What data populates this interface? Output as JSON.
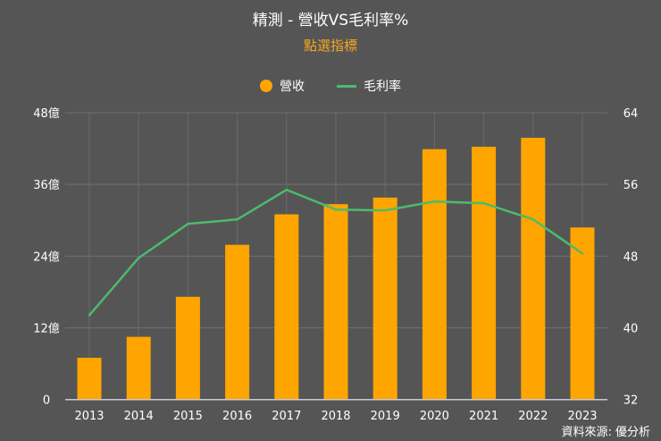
{
  "chart_data": {
    "type": "bar+line",
    "title": "精測 - 營收VS毛利率%",
    "subtitle": "點選指標",
    "categories": [
      "2013",
      "2014",
      "2015",
      "2016",
      "2017",
      "2018",
      "2019",
      "2020",
      "2021",
      "2022",
      "2023"
    ],
    "series": [
      {
        "name": "營收",
        "type": "bar",
        "axis": "left",
        "color": "#ffa500",
        "values": [
          7.0,
          10.5,
          17.2,
          25.9,
          31.0,
          32.7,
          33.8,
          41.9,
          42.3,
          43.8,
          28.8
        ]
      },
      {
        "name": "毛利率",
        "type": "line",
        "axis": "right",
        "color": "#4cbb6c",
        "values": [
          41.4,
          47.8,
          51.6,
          52.1,
          55.4,
          53.2,
          53.1,
          54.1,
          53.9,
          52.1,
          48.3
        ]
      }
    ],
    "left_axis": {
      "ylim": [
        0,
        48
      ],
      "ticks": [
        "0",
        "12億",
        "24億",
        "36億",
        "48億"
      ]
    },
    "right_axis": {
      "ylim": [
        32,
        64
      ],
      "ticks": [
        "32",
        "40",
        "48",
        "56",
        "64"
      ]
    },
    "grid": true,
    "legend": "top-center",
    "source": "資料來源: 優分析"
  }
}
